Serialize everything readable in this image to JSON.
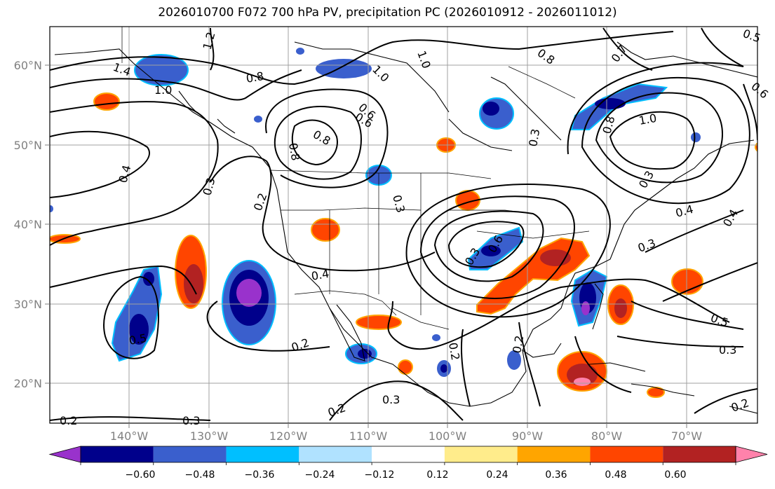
{
  "title": "2026010700 F072 700 hPa PV, precipitation PC (2026010912 - 2026011012)",
  "lat_labels": [
    "60°N",
    "50°N",
    "40°N",
    "30°N",
    "20°N"
  ],
  "lon_labels": [
    "140°W",
    "130°W",
    "120°W",
    "110°W",
    "100°W",
    "90°W",
    "80°W",
    "70°W"
  ],
  "contour_labels": [
    "1.2",
    "1.4",
    "1.0",
    "0.8",
    "0.6",
    "0.4",
    "0.3",
    "0.2",
    "0.8",
    "1.0",
    "0.8",
    "0.7",
    "0.5",
    "0.6",
    "1.0",
    "0.8",
    "0.3",
    "0.4",
    "0.3",
    "0.5",
    "0.3",
    "0.2",
    "0.2",
    "0.3",
    "0.2",
    "0.2",
    "0.3",
    "0.4",
    "0.5",
    "0.6",
    "0.3",
    "0.2",
    "0.3",
    "0.2",
    "0.6",
    "0.8",
    "1.0",
    "0.4",
    "0.3"
  ],
  "colorbar": {
    "ticks": [
      "−0.60",
      "−0.48",
      "−0.36",
      "−0.24",
      "−0.12",
      "0.12",
      "0.24",
      "0.36",
      "0.48",
      "0.60"
    ],
    "colors": [
      "#9932cc",
      "#00008b",
      "#3a5fcd",
      "#00bfff",
      "#b0e2ff",
      "#ffffff",
      "#ffec8b",
      "#ffa500",
      "#ff4500",
      "#b22222",
      "#ff82ab"
    ]
  }
}
